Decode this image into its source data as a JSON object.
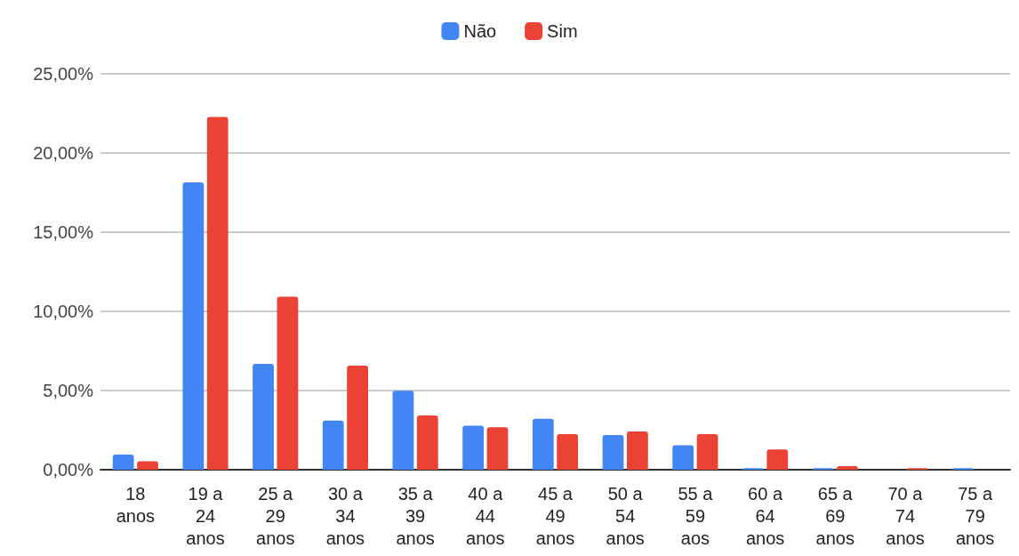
{
  "chart_data": {
    "type": "bar",
    "categories": [
      "18 anos",
      "19 a 24 anos",
      "25 a 29 anos",
      "30 a 34 anos",
      "35 a 39 anos",
      "40 a 44 anos",
      "45 a 49 anos",
      "50 a 54 anos",
      "55 a 59 aos",
      "60 a 64 anos",
      "65 a 69 anos",
      "70 a 74 anos",
      "75 a 79 anos"
    ],
    "series": [
      {
        "name": "Não",
        "color": "#4285f4",
        "values": [
          0.96,
          18.15,
          6.69,
          3.1,
          4.98,
          2.78,
          3.21,
          2.19,
          1.55,
          0.1,
          0.1,
          0,
          0.1
        ]
      },
      {
        "name": "Sim",
        "color": "#ea4335",
        "values": [
          0.54,
          22.27,
          10.92,
          6.58,
          3.43,
          2.68,
          2.25,
          2.41,
          2.25,
          1.28,
          0.22,
          0.1,
          0
        ]
      }
    ],
    "ylim": [
      0,
      25
    ],
    "yticks": [
      {
        "value": 0,
        "label": "0,00%"
      },
      {
        "value": 5,
        "label": "5,00%"
      },
      {
        "value": 10,
        "label": "10,00%"
      },
      {
        "value": 15,
        "label": "15,00%"
      },
      {
        "value": 20,
        "label": "20,00%"
      },
      {
        "value": 25,
        "label": "25,00%"
      }
    ],
    "grid": "y",
    "legend": "top"
  }
}
